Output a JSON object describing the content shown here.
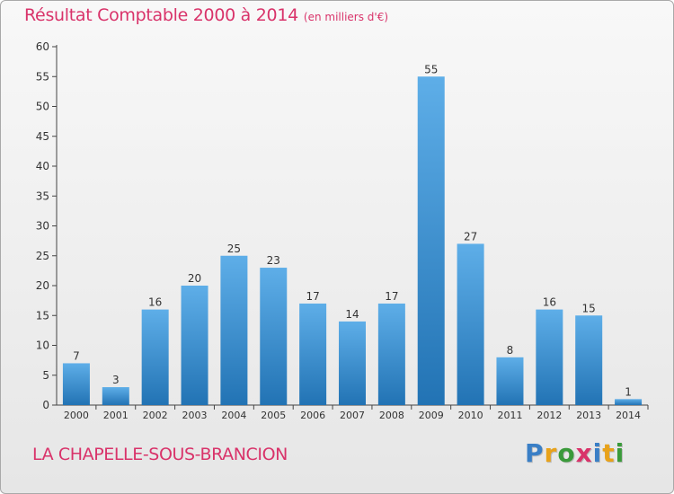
{
  "chart_data": {
    "type": "bar",
    "title": "Résultat Comptable 2000 à 2014",
    "subtitle": "(en milliers d'€)",
    "categories": [
      "2000",
      "2001",
      "2002",
      "2003",
      "2004",
      "2005",
      "2006",
      "2007",
      "2008",
      "2009",
      "2010",
      "2011",
      "2012",
      "2013",
      "2014"
    ],
    "values": [
      7,
      3,
      16,
      20,
      25,
      23,
      17,
      14,
      17,
      55,
      27,
      8,
      16,
      15,
      1
    ],
    "ylim": [
      0,
      60
    ],
    "yticks": [
      0,
      5,
      10,
      15,
      20,
      25,
      30,
      35,
      40,
      45,
      50,
      55,
      60
    ],
    "xlabel": "",
    "ylabel": "",
    "grid": false,
    "legend": "none",
    "colors": {
      "bar_light": "#5eaee8",
      "bar_dark": "#2273b4",
      "title": "#d9336a"
    }
  },
  "commune": "LA CHAPELLE-SOUS-BRANCION",
  "brand": {
    "text": "Proxiti",
    "letters": [
      {
        "ch": "P",
        "color": "#3a7fc6"
      },
      {
        "ch": "r",
        "color": "#e8a21a"
      },
      {
        "ch": "o",
        "color": "#3a9a3a"
      },
      {
        "ch": "x",
        "color": "#d9336a"
      },
      {
        "ch": "i",
        "color": "#3a7fc6"
      },
      {
        "ch": "t",
        "color": "#e8a21a"
      },
      {
        "ch": "i",
        "color": "#3a9a3a"
      }
    ]
  }
}
